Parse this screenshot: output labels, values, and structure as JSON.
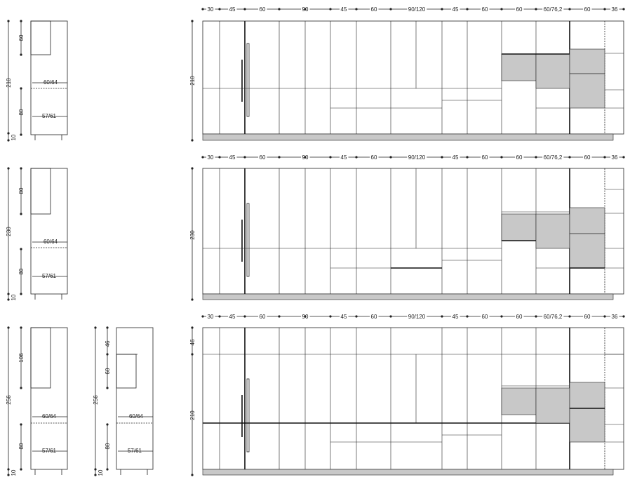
{
  "widths": [
    "30",
    "45",
    "60",
    "90",
    "45",
    "60",
    "90/120",
    "45",
    "60",
    "60",
    "60/76,2",
    "60",
    "36"
  ],
  "rows": [
    {
      "total_height": "210",
      "side_views": [
        {
          "top": "60",
          "total": "210",
          "bottom": "80",
          "plinth": "10",
          "depth_top": "60/64",
          "depth_bottom": "57/61"
        }
      ],
      "elevation_height": "210"
    },
    {
      "total_height": "230",
      "side_views": [
        {
          "top": "80",
          "total": "230",
          "bottom": "80",
          "plinth": "10",
          "depth_top": "60/64",
          "depth_bottom": "57/61"
        }
      ],
      "elevation_height": "230"
    },
    {
      "total_height": "256",
      "side_views": [
        {
          "top": "106",
          "total": "256",
          "bottom": "80",
          "plinth": "10",
          "depth_top": "60/64",
          "depth_bottom": "57/61"
        },
        {
          "top": "46",
          "middle": "60",
          "total": "256",
          "bottom": "80",
          "plinth": "10",
          "depth_top": "60/64",
          "depth_bottom": "57/61"
        }
      ],
      "elevation_top": "46",
      "elevation_height": "210"
    }
  ],
  "colors": {
    "line": "#222222",
    "fill_grey": "#c8c8c8"
  }
}
